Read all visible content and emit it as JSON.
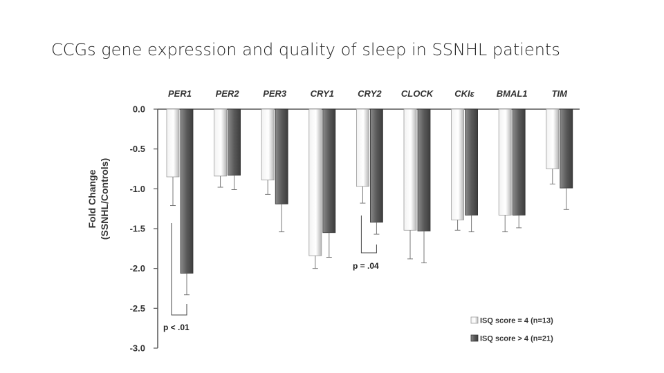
{
  "slide": {
    "title": "CCGs gene expression and quality of sleep in SSNHL patients"
  },
  "colors": {
    "series1_light": "#f2f2f2",
    "series1_mid": "#b5b5b5",
    "series2_light": "#8a8a8a",
    "series2_dark": "#3d3d3d",
    "axis": "#555555",
    "error_bar": "#777777"
  },
  "chart_data": {
    "type": "bar",
    "categories": [
      "PER1",
      "PER2",
      "PER3",
      "CRY1",
      "CRY2",
      "CLOCK",
      "CKIε",
      "BMAL1",
      "TIM"
    ],
    "category_axis_position": "top",
    "series": [
      {
        "name": "ISQ score = 4 (n=13)",
        "values": [
          -0.85,
          -0.84,
          -0.89,
          -1.84,
          -0.97,
          -1.52,
          -1.39,
          -1.33,
          -0.75
        ],
        "error": [
          0.36,
          0.14,
          0.18,
          0.16,
          0.21,
          0.36,
          0.13,
          0.21,
          0.19
        ]
      },
      {
        "name": "ISQ score > 4 (n=21)",
        "values": [
          -2.06,
          -0.83,
          -1.19,
          -1.55,
          -1.42,
          -1.53,
          -1.33,
          -1.33,
          -0.99
        ],
        "error": [
          0.27,
          0.18,
          0.35,
          0.31,
          0.15,
          0.4,
          0.21,
          0.16,
          0.27
        ]
      }
    ],
    "ylabel": "Fold Change\n(SSNHL/Controls)",
    "ylim": [
      -3.0,
      0.0
    ],
    "yticks": [
      "0.0",
      "-0.5",
      "-1.0",
      "-1.5",
      "-2.0",
      "-2.5",
      "-3.0"
    ],
    "ytick_values": [
      0.0,
      -0.5,
      -1.0,
      -1.5,
      -2.0,
      -2.5,
      -3.0
    ],
    "grid": false,
    "legend_position": "bottom-right",
    "annotations": [
      {
        "text": "p < .01",
        "category": "PER1"
      },
      {
        "text": "p = .04",
        "category": "CRY2"
      }
    ]
  }
}
